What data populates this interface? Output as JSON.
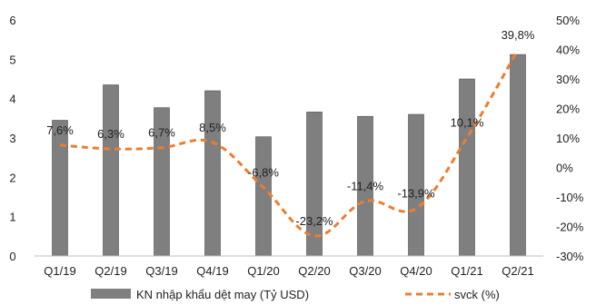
{
  "chart_data": {
    "type": "bar",
    "categories": [
      "Q1/19",
      "Q2/19",
      "Q3/19",
      "Q4/19",
      "Q1/20",
      "Q2/20",
      "Q3/20",
      "Q4/20",
      "Q1/21",
      "Q2/21"
    ],
    "series": [
      {
        "name": "KN nhập khẩu dệt may (Tỷ USD)",
        "type": "bar",
        "axis": "left",
        "color": "#7f7f7f",
        "values": [
          3.45,
          4.35,
          3.77,
          4.2,
          3.03,
          3.66,
          3.55,
          3.6,
          4.5,
          5.12
        ]
      },
      {
        "name": "svck (%)",
        "type": "line",
        "style": "dashed",
        "axis": "right",
        "color": "#ed7d31",
        "values": [
          7.6,
          6.3,
          6.7,
          8.5,
          -6.8,
          -23.2,
          -11.4,
          -13.9,
          10.1,
          39.8
        ],
        "labels": [
          "7,6%",
          "6,3%",
          "6,7%",
          "8,5%",
          "-6,8%",
          "-23,2%",
          "-11,4%",
          "-13,9%",
          "10,1%",
          "39,8%"
        ]
      }
    ],
    "y_left": {
      "ylim": [
        0,
        6
      ],
      "ticks": [
        "0",
        "1",
        "2",
        "3",
        "4",
        "5",
        "6"
      ]
    },
    "y_right": {
      "ylim": [
        -30,
        50
      ],
      "ticks": [
        "-30%",
        "-20%",
        "-10%",
        "0%",
        "10%",
        "20%",
        "30%",
        "40%",
        "50%"
      ]
    },
    "grid": false,
    "legend_position": "bottom"
  }
}
